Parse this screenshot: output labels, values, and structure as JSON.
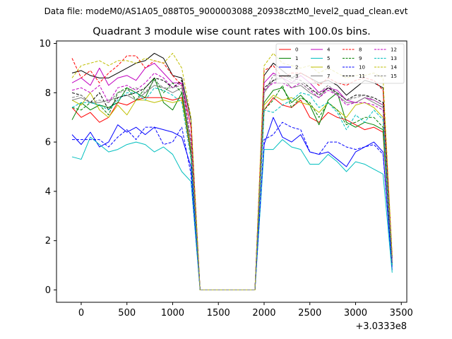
{
  "figure": {
    "suptitle": "Data file: modeM0/AS1A05_088T05_9000003088_20938cztM0_level2_quad_clean.evt"
  },
  "chart_data": {
    "type": "line",
    "title": "Quadrant 3 module wise count rates with 100.0s bins.",
    "xlabel": "",
    "ylabel": "",
    "x_offset_label": "+3.0333e8",
    "xlim": [
      -270,
      3560
    ],
    "ylim": [
      -0.5,
      10.1
    ],
    "xticks": [
      0,
      500,
      1000,
      1500,
      2000,
      2500,
      3000,
      3500
    ],
    "yticks": [
      0,
      2,
      4,
      6,
      8,
      10
    ],
    "legend_position": "top-right",
    "x": [
      -100,
      0,
      100,
      200,
      300,
      400,
      500,
      600,
      700,
      800,
      900,
      1000,
      1100,
      1200,
      1300,
      1400,
      1500,
      1600,
      1700,
      1800,
      1900,
      2000,
      2100,
      2200,
      2300,
      2400,
      2500,
      2600,
      2700,
      2800,
      2900,
      3000,
      3100,
      3200,
      3300,
      3400
    ],
    "series": [
      {
        "name": "0",
        "color": "#ff0000",
        "dash": "solid",
        "values": [
          7.4,
          7.0,
          7.2,
          6.8,
          7.0,
          7.6,
          7.5,
          7.7,
          7.8,
          7.8,
          7.8,
          7.7,
          7.8,
          5.5,
          0.0,
          0.0,
          0.0,
          0.0,
          0.0,
          0.0,
          0.0,
          7.3,
          7.8,
          7.5,
          7.4,
          7.7,
          7.0,
          6.8,
          7.2,
          7.0,
          6.9,
          6.7,
          6.5,
          6.6,
          6.4,
          1.0
        ]
      },
      {
        "name": "1",
        "color": "#008000",
        "dash": "solid",
        "values": [
          6.9,
          7.6,
          7.3,
          7.5,
          7.4,
          7.6,
          8.2,
          8.0,
          7.8,
          8.6,
          7.6,
          7.3,
          8.0,
          5.6,
          0.0,
          0.0,
          0.0,
          0.0,
          0.0,
          0.0,
          0.0,
          7.6,
          8.1,
          8.2,
          7.6,
          7.9,
          7.5,
          6.7,
          7.7,
          8.0,
          6.8,
          6.6,
          6.8,
          6.7,
          6.5,
          1.1
        ]
      },
      {
        "name": "2",
        "color": "#0000ff",
        "dash": "solid",
        "values": [
          6.3,
          5.9,
          6.4,
          5.8,
          6.0,
          6.7,
          6.4,
          6.6,
          6.3,
          6.6,
          6.5,
          6.4,
          6.2,
          5.0,
          0.0,
          0.0,
          0.0,
          0.0,
          0.0,
          0.0,
          0.0,
          5.9,
          7.0,
          6.2,
          6.0,
          6.3,
          5.6,
          5.5,
          5.6,
          5.3,
          5.0,
          5.6,
          5.8,
          6.0,
          5.6,
          0.8
        ]
      },
      {
        "name": "3",
        "color": "#000000",
        "dash": "solid",
        "values": [
          8.8,
          8.9,
          8.7,
          8.6,
          8.6,
          8.8,
          9.0,
          9.2,
          9.3,
          9.6,
          9.4,
          8.7,
          8.6,
          6.9,
          0.0,
          0.0,
          0.0,
          0.0,
          0.0,
          0.0,
          0.0,
          8.7,
          9.2,
          8.9,
          8.6,
          8.8,
          8.6,
          8.4,
          8.5,
          8.3,
          7.9,
          8.2,
          8.5,
          8.4,
          8.2,
          1.3
        ]
      },
      {
        "name": "4",
        "color": "#c000c0",
        "dash": "solid",
        "values": [
          8.4,
          8.6,
          8.3,
          9.0,
          8.3,
          8.6,
          8.7,
          8.5,
          9.0,
          9.2,
          8.8,
          8.4,
          8.4,
          6.6,
          0.0,
          0.0,
          0.0,
          0.0,
          0.0,
          0.0,
          0.0,
          8.4,
          8.8,
          8.6,
          8.4,
          8.7,
          8.4,
          8.0,
          8.2,
          8.1,
          7.7,
          7.6,
          7.8,
          7.7,
          7.5,
          1.2
        ]
      },
      {
        "name": "5",
        "color": "#00bfbf",
        "dash": "solid",
        "values": [
          5.4,
          5.3,
          6.2,
          5.9,
          5.6,
          5.7,
          5.9,
          6.0,
          5.9,
          5.6,
          5.8,
          5.5,
          4.8,
          4.4,
          0.0,
          0.0,
          0.0,
          0.0,
          0.0,
          0.0,
          0.0,
          5.7,
          5.7,
          6.1,
          5.8,
          5.7,
          5.1,
          5.1,
          5.5,
          5.2,
          4.8,
          5.2,
          5.1,
          4.9,
          4.7,
          0.7
        ]
      },
      {
        "name": "6",
        "color": "#bfbf00",
        "dash": "solid",
        "values": [
          7.7,
          7.5,
          8.0,
          7.3,
          7.0,
          7.5,
          7.1,
          7.7,
          7.7,
          7.6,
          7.7,
          7.6,
          7.7,
          5.7,
          0.0,
          0.0,
          0.0,
          0.0,
          0.0,
          0.0,
          0.0,
          7.5,
          7.9,
          7.7,
          7.8,
          7.6,
          7.5,
          7.2,
          7.6,
          7.3,
          7.0,
          7.5,
          7.6,
          7.4,
          7.0,
          1.0
        ]
      },
      {
        "name": "7",
        "color": "#808080",
        "dash": "solid",
        "values": [
          7.7,
          7.8,
          7.6,
          7.6,
          7.7,
          7.8,
          7.9,
          7.7,
          8.0,
          8.3,
          8.2,
          8.0,
          8.2,
          5.8,
          0.0,
          0.0,
          0.0,
          0.0,
          0.0,
          0.0,
          0.0,
          8.0,
          8.5,
          8.6,
          8.2,
          8.3,
          8.0,
          7.8,
          8.2,
          7.9,
          7.6,
          7.6,
          7.8,
          7.6,
          7.4,
          1.0
        ]
      },
      {
        "name": "8",
        "color": "#ff0000",
        "dash": "dashed",
        "values": [
          9.4,
          8.6,
          8.9,
          8.4,
          8.8,
          9.1,
          9.5,
          9.5,
          9.0,
          9.3,
          9.2,
          8.7,
          8.3,
          6.6,
          0.0,
          0.0,
          0.0,
          0.0,
          0.0,
          0.0,
          0.0,
          8.9,
          9.1,
          8.6,
          8.8,
          8.8,
          8.6,
          8.3,
          8.6,
          8.4,
          8.3,
          8.5,
          8.6,
          8.5,
          8.1,
          1.4
        ]
      },
      {
        "name": "9",
        "color": "#008000",
        "dash": "dashed",
        "values": [
          7.4,
          7.3,
          7.6,
          7.5,
          7.1,
          8.0,
          8.2,
          7.7,
          8.2,
          8.6,
          8.0,
          8.4,
          8.0,
          5.5,
          0.0,
          0.0,
          0.0,
          0.0,
          0.0,
          0.0,
          0.0,
          7.3,
          7.7,
          8.3,
          7.4,
          7.8,
          7.6,
          7.0,
          7.6,
          7.3,
          6.7,
          6.8,
          7.0,
          7.0,
          6.6,
          1.0
        ]
      },
      {
        "name": "10",
        "color": "#0000ff",
        "dash": "dashed",
        "values": [
          6.1,
          6.1,
          6.1,
          6.1,
          5.8,
          6.2,
          6.5,
          6.1,
          6.6,
          6.6,
          5.9,
          6.0,
          6.6,
          4.7,
          0.0,
          0.0,
          0.0,
          0.0,
          0.0,
          0.0,
          0.0,
          6.1,
          6.3,
          6.8,
          6.6,
          6.5,
          5.6,
          5.5,
          6.0,
          6.0,
          5.8,
          5.7,
          5.8,
          5.9,
          5.5,
          0.9
        ]
      },
      {
        "name": "11",
        "color": "#000000",
        "dash": "dashed",
        "values": [
          8.0,
          7.9,
          7.6,
          8.0,
          7.3,
          7.8,
          7.9,
          8.0,
          8.2,
          8.6,
          8.5,
          8.2,
          8.5,
          6.0,
          0.0,
          0.0,
          0.0,
          0.0,
          0.0,
          0.0,
          0.0,
          8.2,
          8.5,
          8.7,
          8.6,
          8.5,
          8.2,
          7.9,
          8.2,
          8.0,
          7.7,
          7.9,
          7.9,
          7.8,
          7.6,
          1.1
        ]
      },
      {
        "name": "12",
        "color": "#c000c0",
        "dash": "dashed",
        "values": [
          8.1,
          8.2,
          8.0,
          8.3,
          7.6,
          8.2,
          8.3,
          8.1,
          8.4,
          8.8,
          8.6,
          8.2,
          8.4,
          6.1,
          0.0,
          0.0,
          0.0,
          0.0,
          0.0,
          0.0,
          0.0,
          8.1,
          8.4,
          8.4,
          8.2,
          8.4,
          8.1,
          7.8,
          8.1,
          7.9,
          7.5,
          7.6,
          7.6,
          7.5,
          7.3,
          1.1
        ]
      },
      {
        "name": "13",
        "color": "#00bfbf",
        "dash": "dashed",
        "values": [
          7.4,
          7.6,
          7.6,
          7.5,
          7.3,
          7.7,
          8.0,
          8.0,
          7.7,
          8.2,
          8.1,
          7.9,
          7.6,
          5.3,
          0.0,
          0.0,
          0.0,
          0.0,
          0.0,
          0.0,
          0.0,
          7.3,
          7.2,
          7.5,
          7.7,
          8.0,
          7.9,
          7.4,
          7.6,
          7.2,
          6.5,
          7.1,
          6.8,
          7.3,
          6.9,
          1.0
        ]
      },
      {
        "name": "14",
        "color": "#bfbf00",
        "dash": "dashed",
        "values": [
          8.6,
          9.1,
          9.2,
          9.3,
          9.1,
          9.3,
          9.3,
          9.2,
          9.4,
          9.3,
          9.2,
          9.6,
          9.0,
          7.0,
          0.0,
          0.0,
          0.0,
          0.0,
          0.0,
          0.0,
          0.0,
          9.1,
          9.6,
          9.2,
          9.1,
          9.0,
          9.1,
          8.8,
          9.0,
          8.8,
          8.6,
          8.7,
          8.7,
          8.8,
          8.6,
          1.4
        ]
      },
      {
        "name": "15",
        "color": "#808080",
        "dash": "dashed",
        "values": [
          7.8,
          7.9,
          7.6,
          7.7,
          7.6,
          8.0,
          8.1,
          8.2,
          8.0,
          8.5,
          8.2,
          8.2,
          8.3,
          6.0,
          0.0,
          0.0,
          0.0,
          0.0,
          0.0,
          0.0,
          0.0,
          8.0,
          8.7,
          8.7,
          8.5,
          8.4,
          8.1,
          8.0,
          8.3,
          8.0,
          7.7,
          7.8,
          7.9,
          7.7,
          7.5,
          1.1
        ]
      }
    ]
  }
}
